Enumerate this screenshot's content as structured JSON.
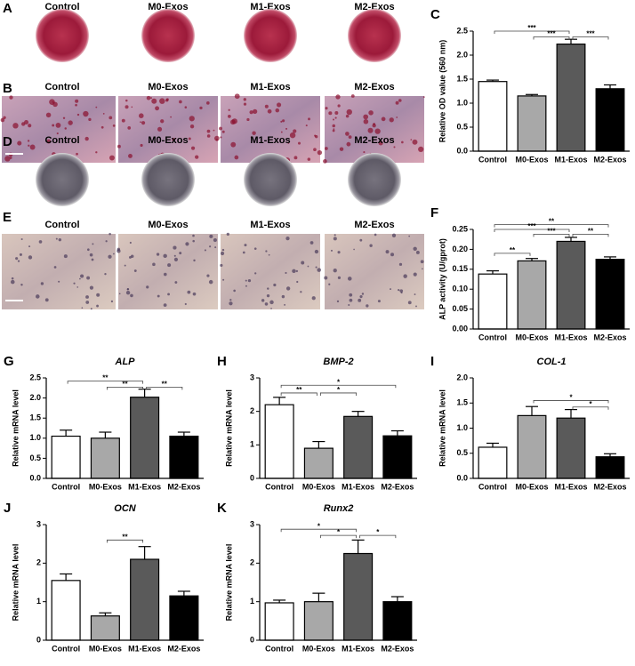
{
  "photos": [
    {
      "letter": "A",
      "labels": [
        "Control",
        "M0-Exos",
        "M1-Exos",
        "M2-Exos"
      ]
    },
    {
      "letter": "B",
      "labels": [
        "Control",
        "M0-Exos",
        "M1-Exos",
        "M2-Exos"
      ]
    },
    {
      "letter": "D",
      "labels": [
        "Control",
        "M0-Exos",
        "M1-Exos",
        "M2-Exos"
      ]
    },
    {
      "letter": "E",
      "labels": [
        "Control",
        "M0-Exos",
        "M1-Exos",
        "M2-Exos"
      ]
    }
  ],
  "chart_data": [
    {
      "type": "bar",
      "panel": "C",
      "y_label": "Relative OD value (560 nm)",
      "categories": [
        "Control",
        "M0-Exos",
        "M1-Exos",
        "M2-Exos"
      ],
      "values": [
        1.45,
        1.15,
        2.23,
        1.3
      ],
      "errors": [
        0.03,
        0.03,
        0.1,
        0.08
      ],
      "colors": [
        "#ffffff",
        "#a8a8a8",
        "#5a5a5a",
        "#000000"
      ],
      "ylim": [
        0,
        2.5
      ],
      "yticks": [
        {
          "value": 0,
          "label": "0.0"
        },
        {
          "value": 0.5,
          "label": "0.5"
        },
        {
          "value": 1,
          "label": "1.0"
        },
        {
          "value": 1.5,
          "label": "1.5"
        },
        {
          "value": 2,
          "label": "2.0"
        },
        {
          "value": 2.5,
          "label": "2.5"
        }
      ],
      "brackets": [
        {
          "from": 0,
          "to": 2,
          "y": 2.5,
          "label": "***"
        },
        {
          "from": 1,
          "to": 2,
          "y": 2.38,
          "label": "***"
        },
        {
          "from": 2,
          "to": 3,
          "y": 2.38,
          "label": "***"
        }
      ]
    },
    {
      "type": "bar",
      "panel": "F",
      "y_label": "ALP activity (U/gprot)",
      "categories": [
        "Control",
        "M0-Exos",
        "M1-Exos",
        "M2-Exos"
      ],
      "values": [
        0.138,
        0.171,
        0.22,
        0.175
      ],
      "errors": [
        0.008,
        0.006,
        0.01,
        0.006
      ],
      "colors": [
        "#ffffff",
        "#a8a8a8",
        "#5a5a5a",
        "#000000"
      ],
      "ylim": [
        0,
        0.25
      ],
      "yticks": [
        {
          "value": 0,
          "label": "0.00"
        },
        {
          "value": 0.05,
          "label": "0.05"
        },
        {
          "value": 0.1,
          "label": "0.10"
        },
        {
          "value": 0.15,
          "label": "0.15"
        },
        {
          "value": 0.2,
          "label": "0.20"
        },
        {
          "value": 0.25,
          "label": "0.25"
        }
      ],
      "brackets": [
        {
          "from": 0,
          "to": 3,
          "y": 0.262,
          "label": "**"
        },
        {
          "from": 0,
          "to": 2,
          "y": 0.25,
          "label": "***"
        },
        {
          "from": 1,
          "to": 2,
          "y": 0.238,
          "label": "***"
        },
        {
          "from": 2,
          "to": 3,
          "y": 0.238,
          "label": "**"
        },
        {
          "from": 0,
          "to": 1,
          "y": 0.19,
          "label": "**"
        }
      ]
    },
    {
      "type": "bar",
      "panel": "G",
      "title": "ALP",
      "y_label": "Relative mRNA level",
      "categories": [
        "Control",
        "M0-Exos",
        "M1-Exos",
        "M2-Exos"
      ],
      "values": [
        1.05,
        1.0,
        2.02,
        1.05
      ],
      "errors": [
        0.15,
        0.15,
        0.2,
        0.1
      ],
      "colors": [
        "#ffffff",
        "#a8a8a8",
        "#5a5a5a",
        "#000000"
      ],
      "ylim": [
        0,
        2.5
      ],
      "yticks": [
        {
          "value": 0,
          "label": "0.0"
        },
        {
          "value": 0.5,
          "label": "0.5"
        },
        {
          "value": 1,
          "label": "1.0"
        },
        {
          "value": 1.5,
          "label": "1.5"
        },
        {
          "value": 2,
          "label": "2.0"
        },
        {
          "value": 2.5,
          "label": "2.5"
        }
      ],
      "brackets": [
        {
          "from": 0,
          "to": 2,
          "y": 2.42,
          "label": "**"
        },
        {
          "from": 1,
          "to": 2,
          "y": 2.27,
          "label": "**"
        },
        {
          "from": 2,
          "to": 3,
          "y": 2.27,
          "label": "**"
        }
      ]
    },
    {
      "type": "bar",
      "panel": "H",
      "title": "BMP-2",
      "y_label": "Relative mRNA level",
      "categories": [
        "Control",
        "M0-Exos",
        "M1-Exos",
        "M2-Exos"
      ],
      "values": [
        2.2,
        0.9,
        1.85,
        1.27
      ],
      "errors": [
        0.22,
        0.2,
        0.15,
        0.15
      ],
      "colors": [
        "#ffffff",
        "#a8a8a8",
        "#5a5a5a",
        "#000000"
      ],
      "ylim": [
        0,
        3
      ],
      "yticks": [
        0,
        1,
        2,
        3
      ],
      "brackets": [
        {
          "from": 0,
          "to": 3,
          "y": 2.78,
          "label": "*"
        },
        {
          "from": 0,
          "to": 1,
          "y": 2.55,
          "label": "**"
        },
        {
          "from": 1,
          "to": 2,
          "y": 2.55,
          "label": "*"
        }
      ]
    },
    {
      "type": "bar",
      "panel": "I",
      "title": "COL-1",
      "y_label": "Relative mRNA level",
      "categories": [
        "Control",
        "M0-Exos",
        "M1-Exos",
        "M2-Exos"
      ],
      "values": [
        0.62,
        1.25,
        1.2,
        0.43
      ],
      "errors": [
        0.08,
        0.18,
        0.17,
        0.06
      ],
      "colors": [
        "#ffffff",
        "#a8a8a8",
        "#5a5a5a",
        "#000000"
      ],
      "ylim": [
        0,
        2
      ],
      "yticks": [
        {
          "value": 0,
          "label": "0.0"
        },
        {
          "value": 0.5,
          "label": "0.5"
        },
        {
          "value": 1,
          "label": "1.0"
        },
        {
          "value": 1.5,
          "label": "1.5"
        },
        {
          "value": 2,
          "label": "2.0"
        }
      ],
      "brackets": [
        {
          "from": 1,
          "to": 3,
          "y": 1.55,
          "label": "*"
        },
        {
          "from": 2,
          "to": 3,
          "y": 1.42,
          "label": "*"
        }
      ]
    },
    {
      "type": "bar",
      "panel": "J",
      "title": "OCN",
      "y_label": "Relative mRNA level",
      "categories": [
        "Control",
        "M0-Exos",
        "M1-Exos",
        "M2-Exos"
      ],
      "values": [
        1.55,
        0.63,
        2.1,
        1.15
      ],
      "errors": [
        0.17,
        0.08,
        0.33,
        0.12
      ],
      "colors": [
        "#ffffff",
        "#a8a8a8",
        "#5a5a5a",
        "#000000"
      ],
      "ylim": [
        0,
        3
      ],
      "yticks": [
        0,
        1,
        2,
        3
      ],
      "brackets": [
        {
          "from": 1,
          "to": 2,
          "y": 2.6,
          "label": "**"
        }
      ]
    },
    {
      "type": "bar",
      "panel": "K",
      "title": "Runx2",
      "y_label": "Relative mRNA level",
      "categories": [
        "Control",
        "M0-Exos",
        "M1-Exos",
        "M2-Exos"
      ],
      "values": [
        0.97,
        1.0,
        2.25,
        1.0
      ],
      "errors": [
        0.07,
        0.22,
        0.35,
        0.13
      ],
      "colors": [
        "#ffffff",
        "#a8a8a8",
        "#5a5a5a",
        "#000000"
      ],
      "ylim": [
        0,
        3
      ],
      "yticks": [
        0,
        1,
        2,
        3
      ],
      "brackets": [
        {
          "from": 0,
          "to": 2,
          "y": 2.88,
          "label": "*"
        },
        {
          "from": 1,
          "to": 2,
          "y": 2.72,
          "label": "*"
        },
        {
          "from": 2,
          "to": 3,
          "y": 2.72,
          "label": "*"
        }
      ]
    }
  ]
}
